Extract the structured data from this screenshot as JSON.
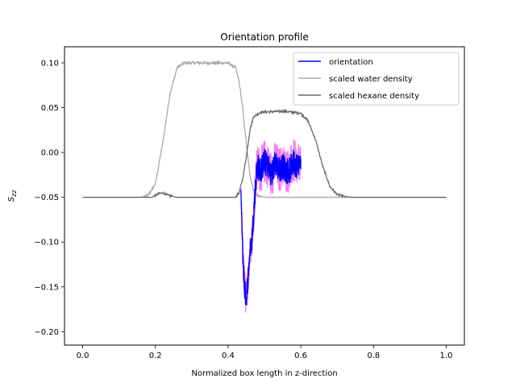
{
  "chart_data": {
    "type": "line",
    "title": "Orientation profile",
    "xlabel": "Normalized box length in z-direction",
    "ylabel": "S",
    "ylabel_subscript": "zz",
    "xlim": [
      -0.05,
      1.05
    ],
    "ylim": [
      -0.215,
      0.118
    ],
    "xticks": [
      "0.0",
      "0.2",
      "0.4",
      "0.6",
      "0.8",
      "1.0"
    ],
    "yticks": [
      "0.10",
      "0.05",
      "0.00",
      "−0.05",
      "−0.10",
      "−0.15",
      "−0.20"
    ],
    "legend_position": "top-right",
    "series": [
      {
        "name": "orientation",
        "color": "#0000ff",
        "x": [
          0.435,
          0.44,
          0.445,
          0.45,
          0.455,
          0.46,
          0.465,
          0.47,
          0.475,
          0.48,
          0.49,
          0.5,
          0.51,
          0.52,
          0.53,
          0.54,
          0.55,
          0.56,
          0.57,
          0.58,
          0.59,
          0.6
        ],
        "y": [
          -0.04,
          -0.11,
          -0.15,
          -0.165,
          -0.14,
          -0.11,
          -0.1,
          -0.07,
          -0.04,
          -0.015,
          -0.02,
          -0.01,
          -0.015,
          -0.025,
          -0.01,
          -0.02,
          -0.015,
          -0.02,
          -0.02,
          -0.01,
          -0.015,
          -0.01
        ],
        "noise": [
          0.004,
          0.012,
          0.015,
          0.012,
          0.012,
          0.01,
          0.012,
          0.012,
          0.015,
          0.015,
          0.015,
          0.015,
          0.015,
          0.015,
          0.015,
          0.015,
          0.015,
          0.015,
          0.015,
          0.015,
          0.015,
          0.01
        ]
      },
      {
        "name": "scaled water density",
        "color": "#a9a9a9",
        "x": [
          0.0,
          0.16,
          0.18,
          0.2,
          0.22,
          0.24,
          0.26,
          0.28,
          0.3,
          0.36,
          0.4,
          0.42,
          0.43,
          0.44,
          0.45,
          0.46,
          0.47,
          0.48,
          0.5,
          1.0
        ],
        "y": [
          -0.05,
          -0.05,
          -0.048,
          -0.035,
          0.01,
          0.065,
          0.095,
          0.1,
          0.1,
          0.1,
          0.1,
          0.095,
          0.08,
          0.05,
          0.01,
          -0.025,
          -0.042,
          -0.048,
          -0.05,
          -0.05
        ]
      },
      {
        "name": "scaled hexane density",
        "color": "#696969",
        "x": [
          0.0,
          0.19,
          0.21,
          0.22,
          0.235,
          0.26,
          0.42,
          0.43,
          0.44,
          0.45,
          0.46,
          0.47,
          0.49,
          0.55,
          0.6,
          0.62,
          0.64,
          0.66,
          0.68,
          0.7,
          0.72,
          0.74,
          1.0
        ],
        "y": [
          -0.05,
          -0.05,
          -0.046,
          -0.045,
          -0.048,
          -0.05,
          -0.05,
          -0.045,
          -0.03,
          -0.005,
          0.025,
          0.04,
          0.045,
          0.046,
          0.044,
          0.035,
          0.015,
          -0.015,
          -0.038,
          -0.047,
          -0.049,
          -0.05,
          -0.05
        ]
      }
    ]
  }
}
